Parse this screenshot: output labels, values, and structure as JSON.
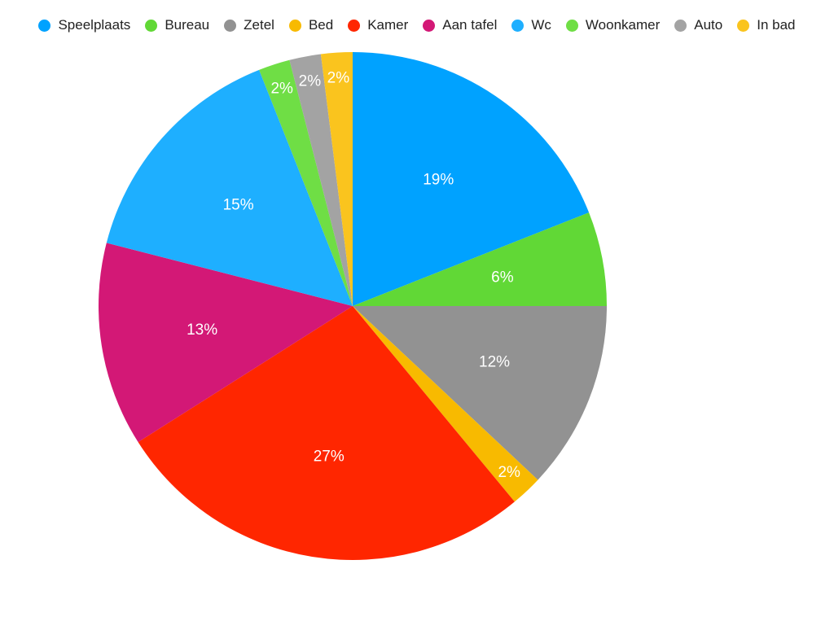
{
  "chart_data": {
    "type": "pie",
    "title": "",
    "legend_position": "top",
    "slices": [
      {
        "label": "Speelplaats",
        "value": 19,
        "display": "19%",
        "color": "#00A2FF"
      },
      {
        "label": "Bureau",
        "value": 6,
        "display": "6%",
        "color": "#61D836"
      },
      {
        "label": "Zetel",
        "value": 12,
        "display": "12%",
        "color": "#929292"
      },
      {
        "label": "Bed",
        "value": 2,
        "display": "2%",
        "color": "#F8BA00"
      },
      {
        "label": "Kamer",
        "value": 27,
        "display": "27%",
        "color": "#FF2600"
      },
      {
        "label": "Aan tafel",
        "value": 13,
        "display": "13%",
        "color": "#D31876"
      },
      {
        "label": "Wc",
        "value": 15,
        "display": "15%",
        "color": "#1EAFFF"
      },
      {
        "label": "Woonkamer",
        "value": 2,
        "display": "2%",
        "color": "#6FDE45"
      },
      {
        "label": "Auto",
        "value": 2,
        "display": "2%",
        "color": "#A3A3A3"
      },
      {
        "label": "In bad",
        "value": 2,
        "display": "2%",
        "color": "#FAC41E"
      }
    ]
  }
}
